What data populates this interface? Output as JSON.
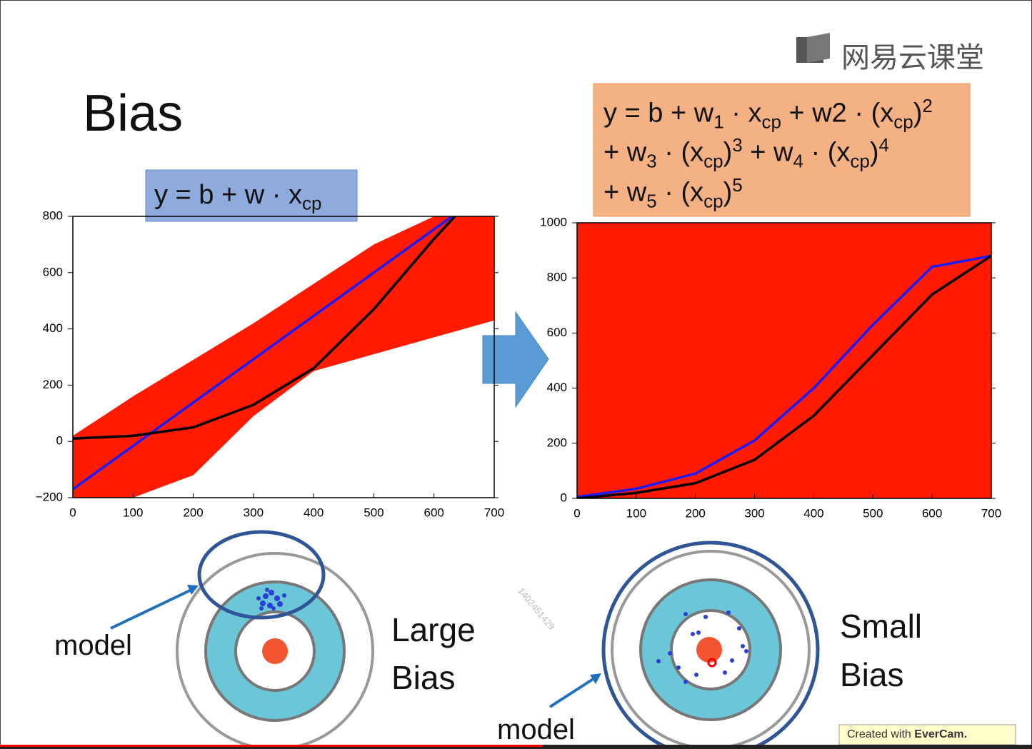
{
  "slide": {
    "title": "Bias",
    "logo": "网易云课堂",
    "formula_left": [
      "y = b + w · x",
      "cp"
    ],
    "formula_right": {
      "line1": [
        "y = b + w",
        "1",
        " · x",
        "cp",
        " + w",
        "2",
        " · (x",
        "cp",
        ")",
        "2"
      ],
      "line2": [
        "+ w",
        "3",
        " · (x",
        "cp",
        ")",
        "3",
        " + w",
        "4",
        " · (x",
        "cp",
        ")",
        "4"
      ],
      "line3": [
        "+ w",
        "5",
        " · (x",
        "cp",
        ")",
        "5"
      ]
    },
    "left_model": "model",
    "left_label": [
      "Large",
      "Bias"
    ],
    "right_model": "model",
    "right_label": [
      "Small",
      "Bias"
    ],
    "watermark": "1402451429",
    "credit": [
      "Created with",
      "EverCam."
    ]
  },
  "chart_data": [
    {
      "type": "line",
      "xlim": [
        0,
        700
      ],
      "ylim": [
        -200,
        800
      ],
      "xticks": [
        0,
        100,
        200,
        300,
        400,
        500,
        600,
        700
      ],
      "yticks": [
        {
          "value": -200,
          "label": "−200"
        },
        0,
        200,
        400,
        600,
        800
      ],
      "x": [
        0,
        100,
        200,
        300,
        400,
        500,
        600,
        700
      ],
      "band": {
        "color": "#ff1a00",
        "upper": [
          20,
          160,
          290,
          420,
          560,
          700,
          800,
          800
        ],
        "lower": [
          -200,
          -200,
          -120,
          90,
          250,
          310,
          370,
          430
        ]
      },
      "series": [
        {
          "color": "#1a1aff",
          "values": [
            -170,
            -16,
            138,
            292,
            446,
            600,
            754,
            908
          ]
        },
        {
          "color": "#000000",
          "values": [
            10,
            20,
            50,
            130,
            260,
            470,
            720,
            950
          ]
        }
      ]
    },
    {
      "type": "line",
      "xlim": [
        0,
        700
      ],
      "ylim": [
        0,
        1000
      ],
      "xticks": [
        0,
        100,
        200,
        300,
        400,
        500,
        600,
        700
      ],
      "yticks": [
        0,
        200,
        400,
        600,
        800,
        1000
      ],
      "x": [
        0,
        100,
        200,
        300,
        400,
        500,
        600,
        700
      ],
      "band": {
        "color": "#ff1a00",
        "upper": [
          1000,
          1000,
          1000,
          1000,
          1000,
          1000,
          1000,
          1000
        ],
        "lower": [
          0,
          0,
          0,
          0,
          0,
          0,
          0,
          0
        ]
      },
      "series": [
        {
          "color": "#1a1aff",
          "values": [
            5,
            35,
            90,
            210,
            400,
            630,
            840,
            880
          ]
        },
        {
          "color": "#000000",
          "values": [
            0,
            20,
            55,
            140,
            300,
            520,
            740,
            880
          ]
        }
      ]
    }
  ]
}
